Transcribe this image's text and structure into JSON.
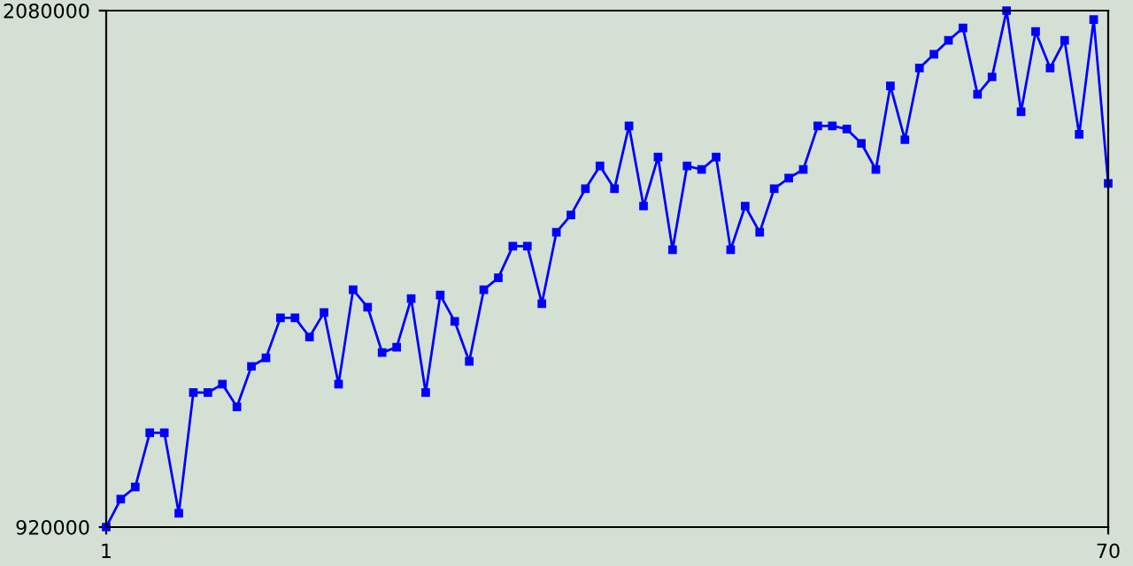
{
  "chart_data": {
    "type": "line",
    "x": [
      1,
      2,
      3,
      4,
      5,
      6,
      7,
      8,
      9,
      10,
      11,
      12,
      13,
      14,
      15,
      16,
      17,
      18,
      19,
      20,
      21,
      22,
      23,
      24,
      25,
      26,
      27,
      28,
      29,
      30,
      31,
      32,
      33,
      34,
      35,
      36,
      37,
      38,
      39,
      40,
      41,
      42,
      43,
      44,
      45,
      46,
      47,
      48,
      49,
      50,
      51,
      52,
      53,
      54,
      55,
      56,
      57,
      58,
      59,
      60,
      61,
      62,
      63,
      64,
      65,
      66,
      67,
      68,
      69,
      70
    ],
    "series": [
      {
        "color": "#0000ff",
        "values": [
          920000,
          983000,
          1010000,
          1132000,
          1132000,
          951000,
          1222000,
          1222000,
          1241000,
          1190000,
          1281000,
          1300000,
          1390000,
          1390000,
          1347000,
          1402000,
          1241000,
          1453000,
          1414000,
          1312000,
          1324000,
          1433000,
          1222000,
          1441000,
          1382000,
          1292000,
          1453000,
          1480000,
          1551000,
          1551000,
          1422000,
          1582000,
          1621000,
          1680000,
          1731000,
          1680000,
          1821000,
          1641000,
          1751000,
          1543000,
          1731000,
          1723000,
          1751000,
          1543000,
          1641000,
          1582000,
          1680000,
          1704000,
          1723000,
          1821000,
          1821000,
          1814000,
          1782000,
          1723000,
          1911000,
          1790000,
          1951000,
          1982000,
          2013000,
          2041000,
          1892000,
          1931000,
          2080000,
          1853000,
          2033000,
          1951000,
          2013000,
          1802000,
          2060000,
          1692000
        ]
      }
    ],
    "xlim": [
      1,
      70
    ],
    "xticks": [
      1,
      70
    ],
    "ylim": [
      920000,
      2080000
    ],
    "yticks": [
      920000,
      2080000
    ],
    "legend": false,
    "marker": "square",
    "line_style": "solid"
  }
}
